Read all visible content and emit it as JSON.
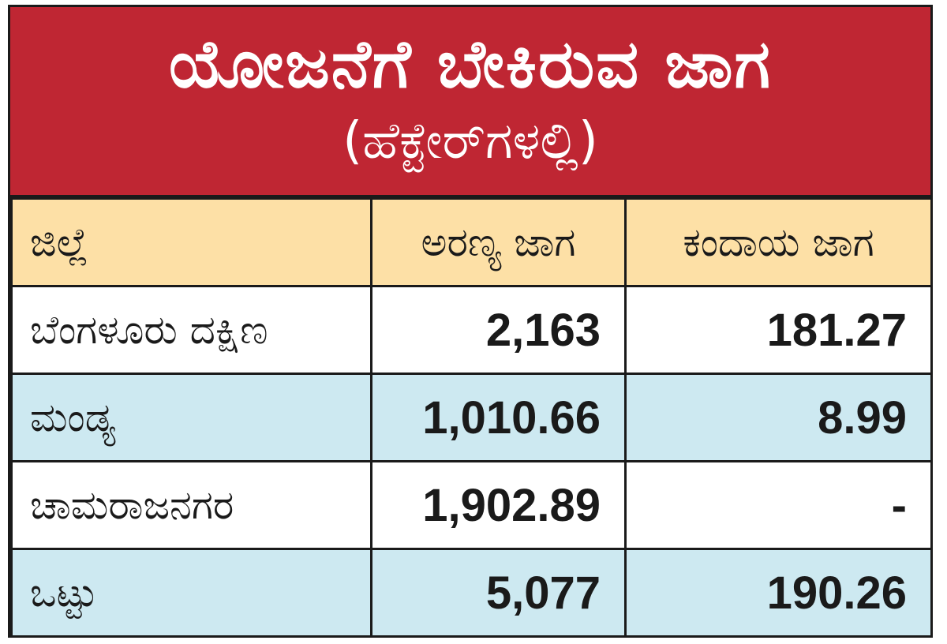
{
  "title": {
    "main": "ಯೋಜನೆಗೆ ಬೇಕಿರುವ ಜಾಗ",
    "sub": "(ಹೆಕ್ಟೇರ್‌ಗಳಲ್ಲಿ)"
  },
  "table": {
    "headers": [
      "ಜಿಲ್ಲೆ",
      "ಅರಣ್ಯ ಜಾಗ",
      "ಕಂದಾಯ ಜಾಗ"
    ],
    "rows": [
      {
        "district": "ಬೆಂಗಳೂರು ದಕ್ಷಿಣ",
        "forest": "2,163",
        "revenue": "181.27"
      },
      {
        "district": "ಮಂಡ್ಯ",
        "forest": "1,010.66",
        "revenue": "8.99"
      },
      {
        "district": "ಚಾಮರಾಜನಗರ",
        "forest": "1,902.89",
        "revenue": "-"
      },
      {
        "district": "ಒಟ್ಟು",
        "forest": "5,077",
        "revenue": "190.26"
      }
    ]
  },
  "colors": {
    "title_bg": "#bf2633",
    "header_bg": "#fde0a6",
    "row_blue": "#cde9f1",
    "row_white": "#ffffff",
    "border": "#1a1a1a"
  }
}
